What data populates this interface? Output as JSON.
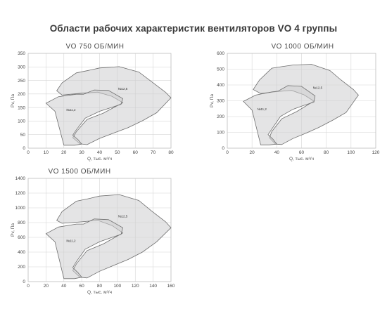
{
  "title": "Области рабочих характеристик вентиляторов VO 4 группы",
  "chart_data": [
    {
      "type": "area",
      "title": "VO 750 ОБ/МИН",
      "xlabel": "Q, тыс. м³/ч",
      "ylabel": "Pv, Па",
      "xlim": [
        0,
        80
      ],
      "ylim": [
        0,
        350
      ],
      "xticks": [
        0,
        10,
        20,
        30,
        40,
        50,
        60,
        70,
        80
      ],
      "yticks": [
        0,
        50,
        100,
        150,
        200,
        250,
        300,
        350
      ],
      "grid": true,
      "series": [
        {
          "name": "№12,5",
          "label_at": [
            53,
            215
          ],
          "points": [
            [
              33,
              13
            ],
            [
              40,
              36
            ],
            [
              48,
              56
            ],
            [
              56,
              76
            ],
            [
              64,
              101
            ],
            [
              72,
              131
            ],
            [
              80,
              186
            ],
            [
              77,
              206
            ],
            [
              69,
              246
            ],
            [
              62,
              281
            ],
            [
              51,
              301
            ],
            [
              40,
              296
            ],
            [
              33,
              286
            ],
            [
              27,
              278
            ],
            [
              19,
              241
            ],
            [
              16,
              212
            ],
            [
              19,
              196
            ],
            [
              30,
              203
            ],
            [
              39,
              207
            ],
            [
              47,
              191
            ],
            [
              53,
              168
            ],
            [
              42,
              129
            ],
            [
              33,
              106
            ],
            [
              27,
              61
            ],
            [
              25,
              39
            ],
            [
              29,
              16
            ]
          ]
        },
        {
          "name": "№11,2",
          "label_at": [
            24,
            138
          ],
          "points": [
            [
              20,
              11
            ],
            [
              26,
              11
            ],
            [
              30,
              15
            ],
            [
              28,
              31
            ],
            [
              25,
              48
            ],
            [
              27,
              68
            ],
            [
              32,
              111
            ],
            [
              40,
              136
            ],
            [
              47,
              151
            ],
            [
              52,
              162
            ],
            [
              53,
              183
            ],
            [
              45,
              213
            ],
            [
              37,
              215
            ],
            [
              31,
              199
            ],
            [
              27,
              199
            ],
            [
              17,
              190
            ],
            [
              10,
              166
            ],
            [
              15,
              136
            ]
          ]
        }
      ]
    },
    {
      "type": "area",
      "title": "VO 1000 ОБ/МИН",
      "xlabel": "Q, тыс. м³/ч",
      "ylabel": "Pv, Па",
      "xlim": [
        0,
        120
      ],
      "ylim": [
        0,
        600
      ],
      "xticks": [
        0,
        20,
        40,
        60,
        80,
        100,
        120
      ],
      "yticks": [
        0,
        100,
        200,
        300,
        400,
        500,
        600
      ],
      "grid": true,
      "series": [
        {
          "name": "№12,5",
          "label_at": [
            73,
            375
          ],
          "points": [
            [
              44,
              23
            ],
            [
              53,
              61
            ],
            [
              64,
              96
            ],
            [
              74,
              131
            ],
            [
              85,
              176
            ],
            [
              96,
              226
            ],
            [
              106,
              336
            ],
            [
              102,
              371
            ],
            [
              92,
              431
            ],
            [
              83,
              491
            ],
            [
              68,
              531
            ],
            [
              53,
              526
            ],
            [
              44,
              516
            ],
            [
              36,
              506
            ],
            [
              26,
              431
            ],
            [
              21,
              371
            ],
            [
              27,
              346
            ],
            [
              40,
              358
            ],
            [
              52,
              366
            ],
            [
              62,
              338
            ],
            [
              70,
              298
            ],
            [
              56,
              231
            ],
            [
              44,
              186
            ],
            [
              36,
              106
            ],
            [
              34,
              66
            ],
            [
              39,
              26
            ]
          ]
        },
        {
          "name": "№11,2",
          "label_at": [
            28,
            240
          ],
          "points": [
            [
              27,
              21
            ],
            [
              34,
              21
            ],
            [
              40,
              26
            ],
            [
              37,
              56
            ],
            [
              33,
              86
            ],
            [
              36,
              121
            ],
            [
              43,
              201
            ],
            [
              53,
              246
            ],
            [
              62,
              271
            ],
            [
              70,
              291
            ],
            [
              71,
              331
            ],
            [
              60,
              391
            ],
            [
              49,
              396
            ],
            [
              41,
              361
            ],
            [
              36,
              356
            ],
            [
              23,
              336
            ],
            [
              13,
              296
            ],
            [
              20,
              241
            ]
          ]
        }
      ]
    },
    {
      "type": "area",
      "title": "VO 1500 ОБ/МИН",
      "xlabel": "Q, тыс. м³/ч",
      "ylabel": "Pv, Па",
      "xlim": [
        0,
        160
      ],
      "ylim": [
        0,
        1400
      ],
      "xticks": [
        0,
        20,
        40,
        60,
        80,
        100,
        120,
        140,
        160
      ],
      "yticks": [
        0,
        200,
        400,
        600,
        800,
        1000,
        1200,
        1400
      ],
      "grid": true,
      "series": [
        {
          "name": "№12,5",
          "label_at": [
            106,
            870
          ],
          "points": [
            [
              66,
              50
            ],
            [
              80,
              140
            ],
            [
              96,
              220
            ],
            [
              112,
              300
            ],
            [
              128,
              400
            ],
            [
              144,
              540
            ],
            [
              160,
              730
            ],
            [
              154,
              810
            ],
            [
              138,
              960
            ],
            [
              124,
              1100
            ],
            [
              102,
              1180
            ],
            [
              80,
              1160
            ],
            [
              66,
              1120
            ],
            [
              54,
              1090
            ],
            [
              38,
              950
            ],
            [
              32,
              830
            ],
            [
              38,
              790
            ],
            [
              60,
              810
            ],
            [
              78,
              830
            ],
            [
              94,
              760
            ],
            [
              106,
              660
            ],
            [
              84,
              510
            ],
            [
              66,
              420
            ],
            [
              54,
              240
            ],
            [
              50,
              150
            ],
            [
              58,
              60
            ]
          ]
        },
        {
          "name": "№11,2",
          "label_at": [
            48,
            540
          ],
          "points": [
            [
              40,
              40
            ],
            [
              52,
              40
            ],
            [
              60,
              60
            ],
            [
              56,
              120
            ],
            [
              50,
              190
            ],
            [
              54,
              270
            ],
            [
              64,
              440
            ],
            [
              80,
              540
            ],
            [
              94,
              600
            ],
            [
              104,
              640
            ],
            [
              106,
              730
            ],
            [
              90,
              840
            ],
            [
              74,
              850
            ],
            [
              62,
              780
            ],
            [
              54,
              780
            ],
            [
              34,
              740
            ],
            [
              20,
              650
            ],
            [
              30,
              540
            ]
          ]
        }
      ]
    }
  ]
}
